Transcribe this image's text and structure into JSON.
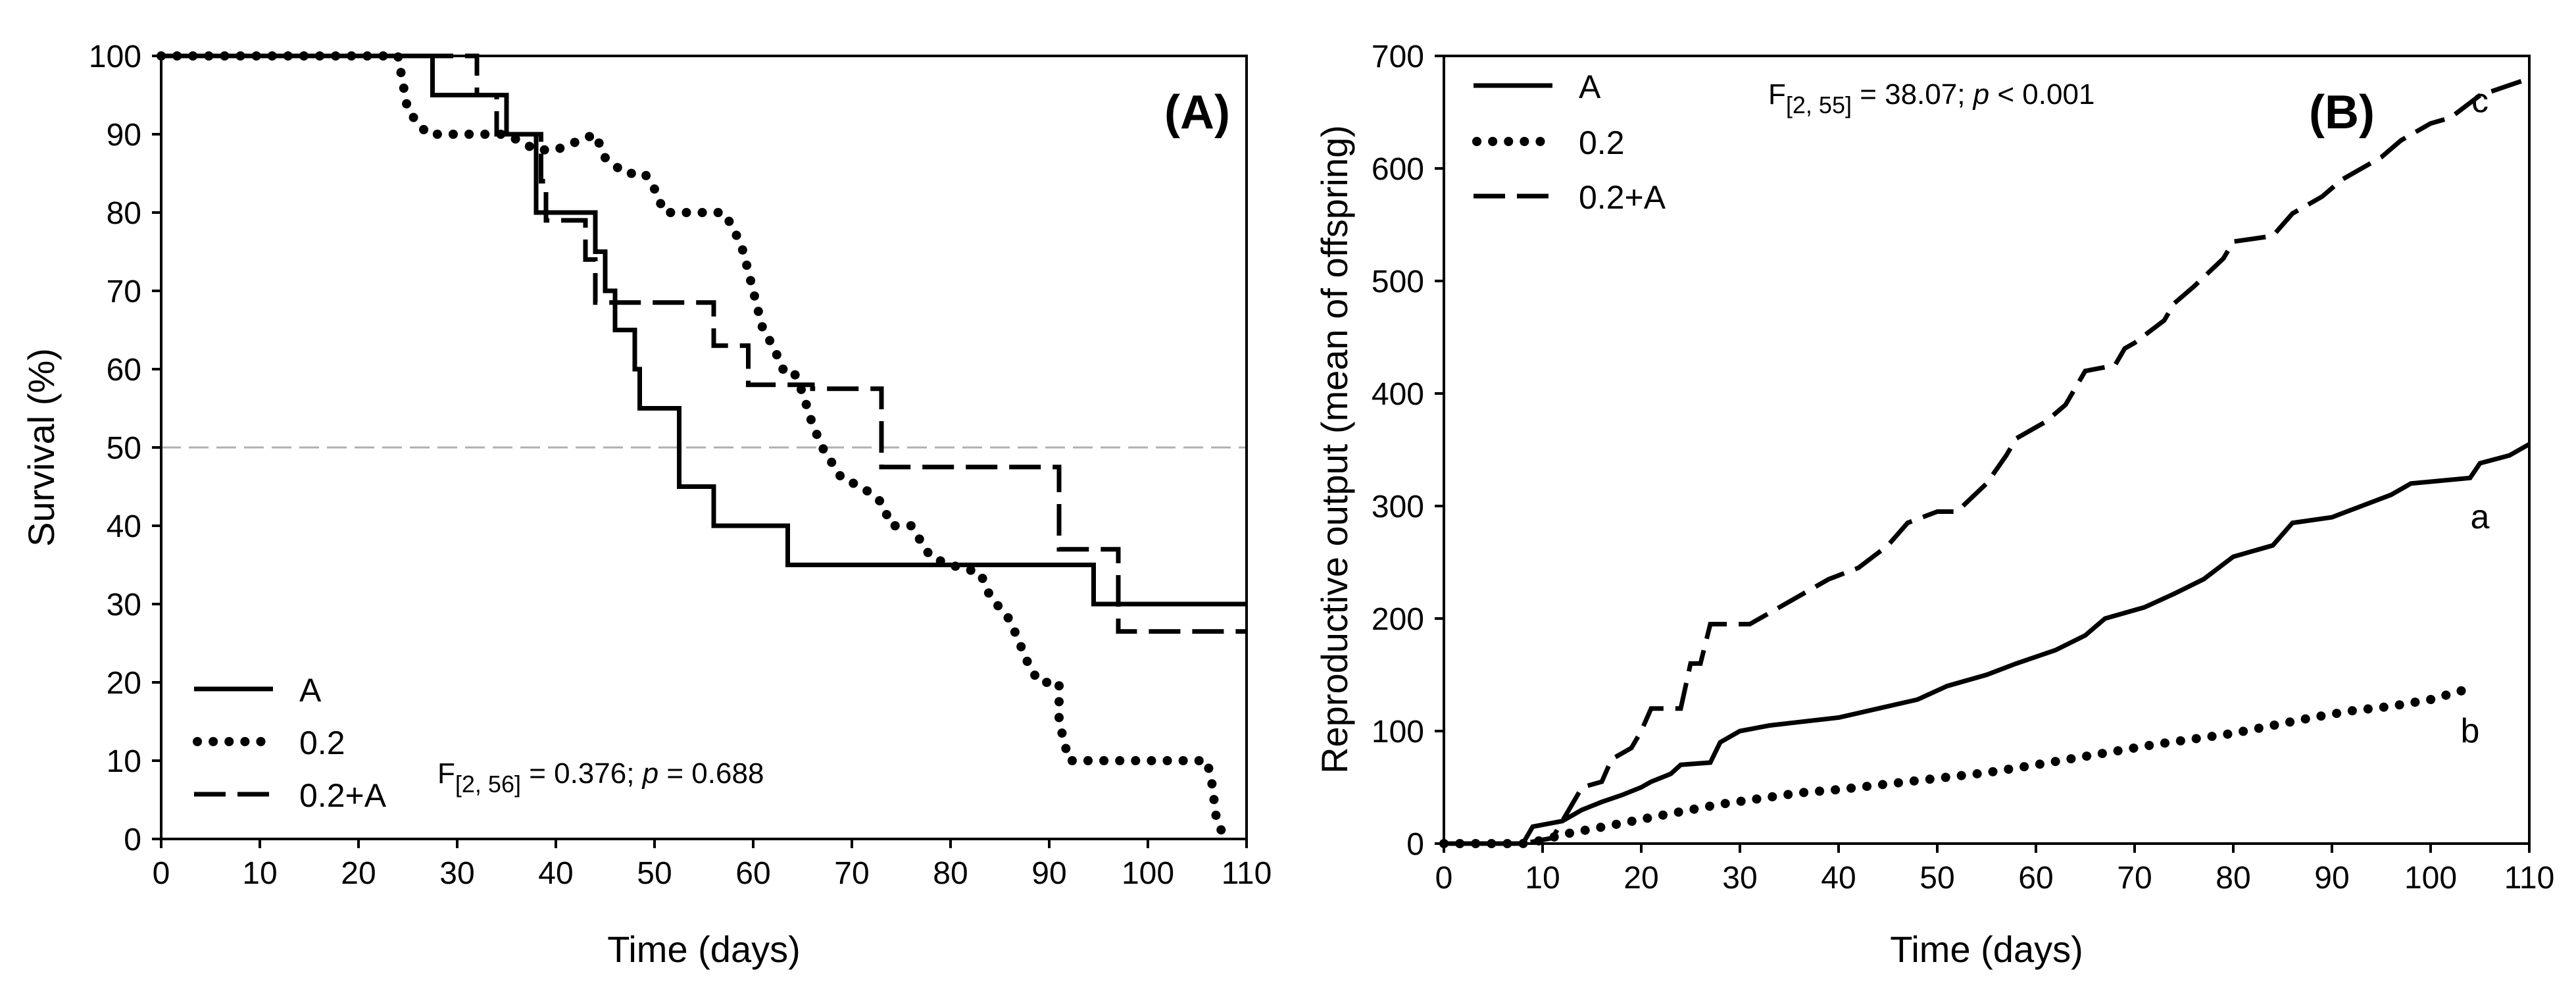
{
  "chart_data": [
    {
      "type": "line",
      "panel_label": "(A)",
      "xlabel": "Time (days)",
      "ylabel": "Survival (%)",
      "xlim": [
        0,
        110
      ],
      "ylim": [
        0,
        100
      ],
      "xticks": [
        0,
        10,
        20,
        30,
        40,
        50,
        60,
        70,
        80,
        90,
        100,
        110
      ],
      "yticks": [
        0,
        10,
        20,
        30,
        40,
        50,
        60,
        70,
        80,
        90,
        100
      ],
      "reference_line": {
        "y": 50,
        "style": "dashed",
        "color": "#b0b0b0"
      },
      "legend": {
        "placement": "bottom-left",
        "entries": [
          "A",
          "0.2",
          "0.2+A"
        ]
      },
      "stat": {
        "pre": "F",
        "sub": "[2, 56]",
        "mid": " = 0.376; ",
        "p": "p",
        "post": " = 0.688"
      },
      "series": [
        {
          "name": "A",
          "style": "solid",
          "points": [
            [
              0,
              100
            ],
            [
              27.5,
              100
            ],
            [
              27.5,
              95
            ],
            [
              35,
              95
            ],
            [
              35,
              90
            ],
            [
              38,
              90
            ],
            [
              38,
              80
            ],
            [
              44,
              80
            ],
            [
              44,
              75
            ],
            [
              45,
              75
            ],
            [
              45,
              70
            ],
            [
              46,
              70
            ],
            [
              46,
              65
            ],
            [
              48,
              65
            ],
            [
              48,
              60
            ],
            [
              48.5,
              60
            ],
            [
              48.5,
              55
            ],
            [
              52.5,
              55
            ],
            [
              52.5,
              45
            ],
            [
              56,
              45
            ],
            [
              56,
              40
            ],
            [
              63.5,
              40
            ],
            [
              63.5,
              35
            ],
            [
              94.5,
              35
            ],
            [
              94.5,
              30
            ],
            [
              110,
              30
            ]
          ]
        },
        {
          "name": "0.2",
          "style": "dotted",
          "points": [
            [
              0,
              100
            ],
            [
              24,
              100
            ],
            [
              25,
              93
            ],
            [
              27,
              90
            ],
            [
              31,
              90
            ],
            [
              33,
              90
            ],
            [
              35,
              90
            ],
            [
              38,
              88
            ],
            [
              40,
              88
            ],
            [
              42,
              89
            ],
            [
              44,
              90
            ],
            [
              45,
              87
            ],
            [
              47,
              85
            ],
            [
              49,
              85
            ],
            [
              50,
              83
            ],
            [
              51,
              80
            ],
            [
              55,
              80
            ],
            [
              57,
              80
            ],
            [
              58,
              78
            ],
            [
              59,
              75
            ],
            [
              60,
              70
            ],
            [
              61,
              65
            ],
            [
              62,
              63
            ],
            [
              63,
              60
            ],
            [
              64,
              60
            ],
            [
              65,
              57
            ],
            [
              66,
              53
            ],
            [
              67,
              50
            ],
            [
              68,
              48
            ],
            [
              69,
              46
            ],
            [
              71,
              45
            ],
            [
              73,
              43
            ],
            [
              74,
              40
            ],
            [
              76,
              40
            ],
            [
              78,
              36
            ],
            [
              80,
              35
            ],
            [
              83,
              34
            ],
            [
              84,
              31
            ],
            [
              86,
              28
            ],
            [
              87,
              25
            ],
            [
              88,
              22
            ],
            [
              89,
              20
            ],
            [
              91,
              20
            ],
            [
              91,
              15
            ],
            [
              92,
              10
            ],
            [
              93,
              10
            ],
            [
              95,
              10
            ],
            [
              97,
              10
            ],
            [
              100,
              10
            ],
            [
              102,
              10
            ],
            [
              104,
              10
            ],
            [
              106,
              10
            ],
            [
              106.5,
              7
            ],
            [
              107,
              2
            ],
            [
              108,
              0
            ]
          ]
        },
        {
          "name": "0.2+A",
          "style": "dashed",
          "points": [
            [
              0,
              100
            ],
            [
              32,
              100
            ],
            [
              32,
              95
            ],
            [
              34,
              95
            ],
            [
              34,
              90
            ],
            [
              38.5,
              90
            ],
            [
              38.5,
              84
            ],
            [
              39,
              84
            ],
            [
              39,
              79
            ],
            [
              43,
              79
            ],
            [
              43,
              74
            ],
            [
              44,
              74
            ],
            [
              44,
              68.5
            ],
            [
              56,
              68.5
            ],
            [
              56,
              63
            ],
            [
              59.5,
              63
            ],
            [
              59.5,
              58
            ],
            [
              66,
              58
            ],
            [
              66,
              57.5
            ],
            [
              73,
              57.5
            ],
            [
              73,
              47.5
            ],
            [
              91,
              47.5
            ],
            [
              91,
              37
            ],
            [
              97,
              37
            ],
            [
              97,
              26.5
            ],
            [
              110,
              26.5
            ]
          ]
        }
      ]
    },
    {
      "type": "line",
      "panel_label": "(B)",
      "xlabel": "Time (days)",
      "ylabel": "Reproductive output (mean of offspring)",
      "xlim": [
        0,
        110
      ],
      "ylim": [
        0,
        700
      ],
      "xticks": [
        0,
        10,
        20,
        30,
        40,
        50,
        60,
        70,
        80,
        90,
        100,
        110
      ],
      "yticks": [
        0,
        100,
        200,
        300,
        400,
        500,
        600,
        700
      ],
      "legend": {
        "placement": "top-left",
        "entries": [
          "A",
          "0.2",
          "0.2+A"
        ]
      },
      "stat": {
        "pre": "F",
        "sub": "[2, 55]",
        "mid": " = 38.07; ",
        "p": "p",
        "post": " < 0.001"
      },
      "group_labels": [
        {
          "text": "c",
          "x": 105,
          "y": 650
        },
        {
          "text": "a",
          "x": 105,
          "y": 280
        },
        {
          "text": "b",
          "x": 104,
          "y": 90
        }
      ],
      "series": [
        {
          "name": "A",
          "style": "solid",
          "points": [
            [
              0,
              0
            ],
            [
              8,
              0
            ],
            [
              9,
              15
            ],
            [
              12,
              20
            ],
            [
              14,
              30
            ],
            [
              16,
              37
            ],
            [
              18,
              43
            ],
            [
              20,
              50
            ],
            [
              21,
              55
            ],
            [
              23,
              62
            ],
            [
              24,
              70
            ],
            [
              27,
              72
            ],
            [
              28,
              90
            ],
            [
              30,
              100
            ],
            [
              33,
              105
            ],
            [
              36,
              108
            ],
            [
              40,
              112
            ],
            [
              44,
              120
            ],
            [
              48,
              128
            ],
            [
              51,
              140
            ],
            [
              55,
              150
            ],
            [
              58,
              160
            ],
            [
              62,
              172
            ],
            [
              65,
              185
            ],
            [
              67,
              200
            ],
            [
              71,
              210
            ],
            [
              74,
              222
            ],
            [
              77,
              235
            ],
            [
              80,
              255
            ],
            [
              84,
              265
            ],
            [
              86,
              285
            ],
            [
              90,
              290
            ],
            [
              93,
              300
            ],
            [
              96,
              310
            ],
            [
              98,
              320
            ],
            [
              104,
              325
            ],
            [
              105,
              338
            ],
            [
              108,
              345
            ],
            [
              110,
              355
            ]
          ]
        },
        {
          "name": "0.2",
          "style": "dotted",
          "points": [
            [
              0,
              0
            ],
            [
              8,
              0
            ],
            [
              10,
              3
            ],
            [
              12,
              8
            ],
            [
              15,
              13
            ],
            [
              18,
              18
            ],
            [
              22,
              25
            ],
            [
              25,
              30
            ],
            [
              28,
              35
            ],
            [
              32,
              40
            ],
            [
              36,
              45
            ],
            [
              40,
              48
            ],
            [
              45,
              53
            ],
            [
              50,
              58
            ],
            [
              55,
              63
            ],
            [
              60,
              70
            ],
            [
              64,
              76
            ],
            [
              68,
              82
            ],
            [
              72,
              88
            ],
            [
              76,
              93
            ],
            [
              80,
              98
            ],
            [
              84,
              105
            ],
            [
              88,
              112
            ],
            [
              92,
              118
            ],
            [
              96,
              122
            ],
            [
              100,
              128
            ],
            [
              104,
              138
            ]
          ]
        },
        {
          "name": "0.2+A",
          "style": "dashed",
          "points": [
            [
              0,
              0
            ],
            [
              8,
              0
            ],
            [
              11,
              5
            ],
            [
              12,
              20
            ],
            [
              13,
              35
            ],
            [
              14,
              50
            ],
            [
              16,
              55
            ],
            [
              17,
              75
            ],
            [
              19,
              85
            ],
            [
              20,
              100
            ],
            [
              21,
              120
            ],
            [
              24,
              120
            ],
            [
              25,
              160
            ],
            [
              26,
              160
            ],
            [
              27,
              195
            ],
            [
              31,
              195
            ],
            [
              33,
              205
            ],
            [
              36,
              220
            ],
            [
              39,
              235
            ],
            [
              42,
              245
            ],
            [
              45,
              265
            ],
            [
              47,
              285
            ],
            [
              50,
              295
            ],
            [
              52,
              295
            ],
            [
              55,
              320
            ],
            [
              57,
              345
            ],
            [
              58,
              360
            ],
            [
              61,
              375
            ],
            [
              63,
              390
            ],
            [
              65,
              420
            ],
            [
              68,
              425
            ],
            [
              69,
              440
            ],
            [
              70,
              445
            ],
            [
              73,
              465
            ],
            [
              74,
              480
            ],
            [
              76,
              495
            ],
            [
              79,
              520
            ],
            [
              80,
              535
            ],
            [
              84,
              540
            ],
            [
              86,
              560
            ],
            [
              89,
              575
            ],
            [
              91,
              590
            ],
            [
              95,
              610
            ],
            [
              97,
              625
            ],
            [
              100,
              640
            ],
            [
              102,
              645
            ],
            [
              105,
              665
            ],
            [
              110,
              680
            ]
          ]
        }
      ]
    }
  ]
}
